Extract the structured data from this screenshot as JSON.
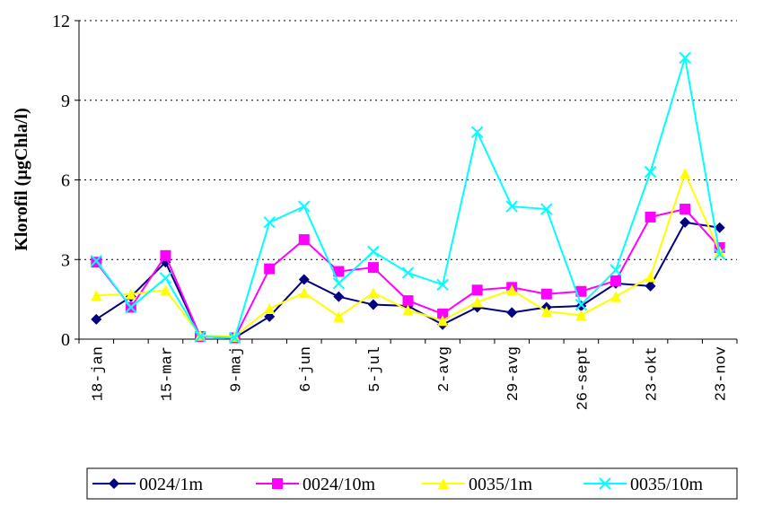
{
  "chart_data": {
    "type": "line",
    "y_label": "Klorofil (µgChla/l)",
    "categories": [
      "18-jan",
      null,
      "15-mar",
      null,
      "9-maj",
      null,
      "6-jun",
      null,
      "5-jul",
      null,
      "2-avg",
      null,
      "29-avg",
      null,
      "26-sept",
      null,
      "23-okt",
      null,
      "23-nov"
    ],
    "ylim": [
      0,
      12
    ],
    "yticks": [
      0,
      3,
      6,
      9,
      12
    ],
    "grid": true,
    "legend": "bottom",
    "series": [
      {
        "name": "0024/1m",
        "color": "#000080",
        "marker": "diamond",
        "values": [
          0.75,
          1.6,
          2.9,
          0.1,
          0.05,
          0.85,
          2.25,
          1.6,
          1.3,
          1.25,
          0.55,
          1.2,
          1.0,
          1.2,
          1.25,
          2.1,
          2.0,
          4.4,
          4.2
        ]
      },
      {
        "name": "0024/10m",
        "color": "#ff00ff",
        "marker": "square",
        "values": [
          2.9,
          1.2,
          3.15,
          0.1,
          0.05,
          2.65,
          3.75,
          2.55,
          2.7,
          1.45,
          0.95,
          1.85,
          1.95,
          1.7,
          1.8,
          2.2,
          4.6,
          4.9,
          3.45
        ]
      },
      {
        "name": "0035/1m",
        "color": "#ffff00",
        "marker": "triangle",
        "values": [
          1.65,
          1.7,
          1.85,
          0.15,
          0.1,
          1.15,
          1.75,
          0.85,
          1.75,
          1.1,
          0.7,
          1.4,
          1.85,
          1.05,
          0.9,
          1.6,
          2.35,
          6.25,
          3.3
        ]
      },
      {
        "name": "0035/10m",
        "color": "#00ffff",
        "marker": "x",
        "values": [
          2.95,
          1.2,
          2.3,
          0.1,
          0.05,
          4.4,
          5.0,
          2.1,
          3.3,
          2.5,
          2.05,
          7.8,
          5.0,
          4.9,
          1.3,
          2.6,
          6.3,
          10.6,
          3.2
        ]
      }
    ]
  }
}
